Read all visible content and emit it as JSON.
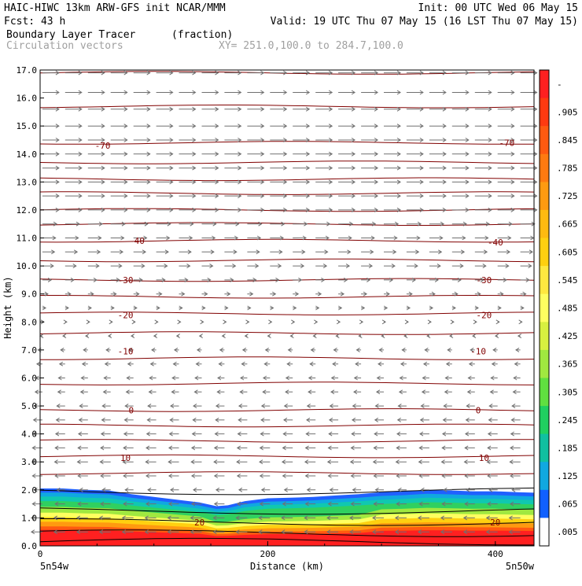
{
  "header": {
    "line1_left": "HAIC-HIWC 13km ARW-GFS init   NCAR/MMM",
    "line1_right": "Init: 00 UTC Wed 06 May 15",
    "line2_left": "Fcst:   43 h",
    "line2_right": "Valid: 19 UTC Thu 07 May 15 (16 LST Thu 07 May 15)",
    "line3_left": "Boundary Layer Tracer",
    "line3_units": "(fraction)",
    "line4_left": "Circulation vectors",
    "line4_right": "XY= 251.0,100.0 to 284.7,100.0"
  },
  "chart_data": {
    "type": "heatmap",
    "xlabel": "Distance (km)",
    "ylabel": "Height (km)",
    "xlim": [
      0,
      434
    ],
    "ylim": [
      0,
      17
    ],
    "x_ticks": [
      "0",
      "200",
      "400"
    ],
    "x_tick_values": [
      0,
      200,
      400
    ],
    "y_ticks": [
      "0.0",
      "1.0",
      "2.0",
      "3.0",
      "4.0",
      "5.0",
      "6.0",
      "7.0",
      "8.0",
      "9.0",
      "10.0",
      "11.0",
      "12.0",
      "13.0",
      "14.0",
      "15.0",
      "16.0",
      "17.0"
    ],
    "x_endpoints": {
      "left": "5n54w",
      "right": "5n50w"
    },
    "colorbar": {
      "labels": [
        "-",
        ".905",
        ".845",
        ".785",
        ".725",
        ".665",
        ".605",
        ".545",
        ".485",
        ".425",
        ".365",
        ".305",
        ".245",
        ".185",
        ".125",
        ".065",
        ".005"
      ],
      "colors": [
        "#ff2020",
        "#ff3a10",
        "#ff5a10",
        "#ff7a10",
        "#ff9a10",
        "#ffba10",
        "#ffd010",
        "#ffe840",
        "#ffff60",
        "#d8f040",
        "#a0e840",
        "#60e040",
        "#20d060",
        "#10c0a0",
        "#10a8e0",
        "#1060ff",
        "#ffffff"
      ]
    },
    "tracer_top_km": [
      [
        0,
        2.05
      ],
      [
        20,
        2.05
      ],
      [
        40,
        2.0
      ],
      [
        60,
        1.98
      ],
      [
        80,
        1.85
      ],
      [
        100,
        1.75
      ],
      [
        120,
        1.65
      ],
      [
        140,
        1.55
      ],
      [
        155,
        1.42
      ],
      [
        165,
        1.45
      ],
      [
        180,
        1.6
      ],
      [
        200,
        1.7
      ],
      [
        220,
        1.72
      ],
      [
        240,
        1.75
      ],
      [
        260,
        1.8
      ],
      [
        280,
        1.85
      ],
      [
        300,
        1.92
      ],
      [
        320,
        1.95
      ],
      [
        340,
        2.0
      ],
      [
        360,
        1.98
      ],
      [
        380,
        1.95
      ],
      [
        400,
        1.95
      ],
      [
        420,
        1.92
      ],
      [
        434,
        1.9
      ]
    ],
    "contour_labels": [
      {
        "text": "-70",
        "x": 55,
        "y": 14.3
      },
      {
        "text": "-70",
        "x": 410,
        "y": 14.4
      },
      {
        "text": "-40",
        "x": 85,
        "y": 10.9
      },
      {
        "text": "-40",
        "x": 400,
        "y": 10.85
      },
      {
        "text": "-30",
        "x": 75,
        "y": 9.5
      },
      {
        "text": "-30",
        "x": 390,
        "y": 9.5
      },
      {
        "text": "-20",
        "x": 75,
        "y": 8.25
      },
      {
        "text": "-20",
        "x": 390,
        "y": 8.25
      },
      {
        "text": "-10",
        "x": 75,
        "y": 6.95
      },
      {
        "text": "-10",
        "x": 385,
        "y": 6.95
      },
      {
        "text": "0",
        "x": 80,
        "y": 4.85
      },
      {
        "text": "0",
        "x": 385,
        "y": 4.85
      },
      {
        "text": "10",
        "x": 75,
        "y": 3.15
      },
      {
        "text": "10",
        "x": 390,
        "y": 3.15
      },
      {
        "text": "20",
        "x": 140,
        "y": 0.85
      },
      {
        "text": "20",
        "x": 400,
        "y": 0.85
      }
    ],
    "contour_heights_km": [
      0.15,
      0.45,
      0.85,
      1.25,
      1.95,
      2.6,
      3.2,
      3.75,
      4.3,
      4.85,
      5.8,
      6.7,
      7.6,
      8.3,
      8.9,
      9.5,
      10.2,
      10.9,
      11.5,
      12.0,
      12.6,
      13.1,
      13.7,
      14.4,
      15.7,
      16.9
    ],
    "vectors": {
      "rows_km": [
        16.9,
        16.2,
        15.6,
        15.0,
        14.5,
        14.0,
        13.5,
        13.0,
        12.5,
        12.0,
        11.5,
        11.0,
        10.5,
        10.0,
        9.5,
        9.0,
        8.5,
        8.0,
        7.5,
        7.0,
        6.5,
        6.0,
        5.5,
        5.0,
        4.5,
        4.0,
        3.5,
        3.0,
        2.5,
        2.0,
        1.5,
        1.0,
        0.5
      ],
      "u_by_row": [
        3,
        3,
        3,
        3,
        3,
        3,
        3,
        3,
        3,
        3,
        2.6,
        2.4,
        2.2,
        2.0,
        1.6,
        1.0,
        0.6,
        0.3,
        -0.4,
        -0.8,
        -1.0,
        -1.2,
        -1.3,
        -1.5,
        -1.6,
        -1.7,
        -1.8,
        -1.9,
        -1.8,
        -1.5,
        -1.8,
        -2.0,
        -2.0
      ],
      "x_step_km": 20
    }
  }
}
